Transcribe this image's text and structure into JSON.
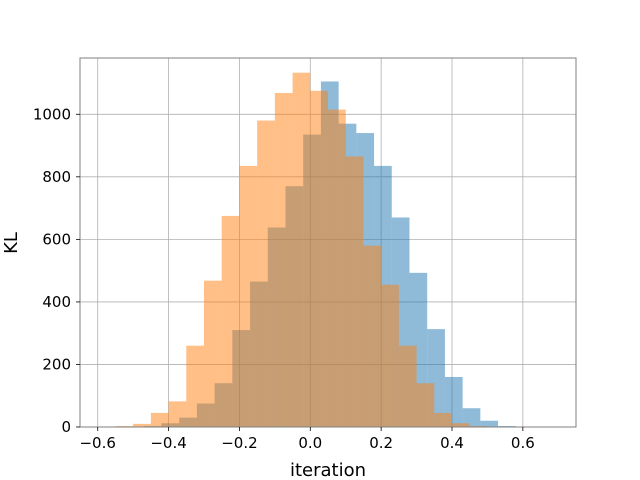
{
  "chart_data": {
    "type": "bar",
    "subtype": "overlapping-histogram",
    "title": "",
    "xlabel": "iteration",
    "ylabel": "KL",
    "xlim": [
      -0.65,
      0.75
    ],
    "ylim": [
      0,
      1180
    ],
    "xticks": [
      -0.6,
      -0.4,
      -0.2,
      0.0,
      0.2,
      0.4,
      0.6
    ],
    "yticks": [
      0,
      200,
      400,
      600,
      800,
      1000
    ],
    "xtick_labels": [
      "−0.6",
      "−0.4",
      "−0.2",
      "0.0",
      "0.2",
      "0.4",
      "0.6"
    ],
    "ytick_labels": [
      "0",
      "200",
      "400",
      "600",
      "800",
      "1000"
    ],
    "grid": true,
    "legend": "none",
    "series": [
      {
        "color": "#1f77b4",
        "alpha": 0.5,
        "bin_width": 0.05,
        "bin_start": -0.47,
        "values": [
          3,
          12,
          30,
          75,
          140,
          310,
          465,
          638,
          770,
          935,
          1105,
          970,
          940,
          835,
          670,
          493,
          313,
          160,
          60,
          20,
          3
        ]
      },
      {
        "color": "#ff7f0e",
        "alpha": 0.5,
        "bin_width": 0.05,
        "bin_start": -0.55,
        "values": [
          3,
          10,
          45,
          82,
          260,
          468,
          675,
          835,
          980,
          1068,
          1133,
          1075,
          1015,
          865,
          580,
          455,
          260,
          140,
          45,
          12,
          3
        ]
      }
    ]
  }
}
